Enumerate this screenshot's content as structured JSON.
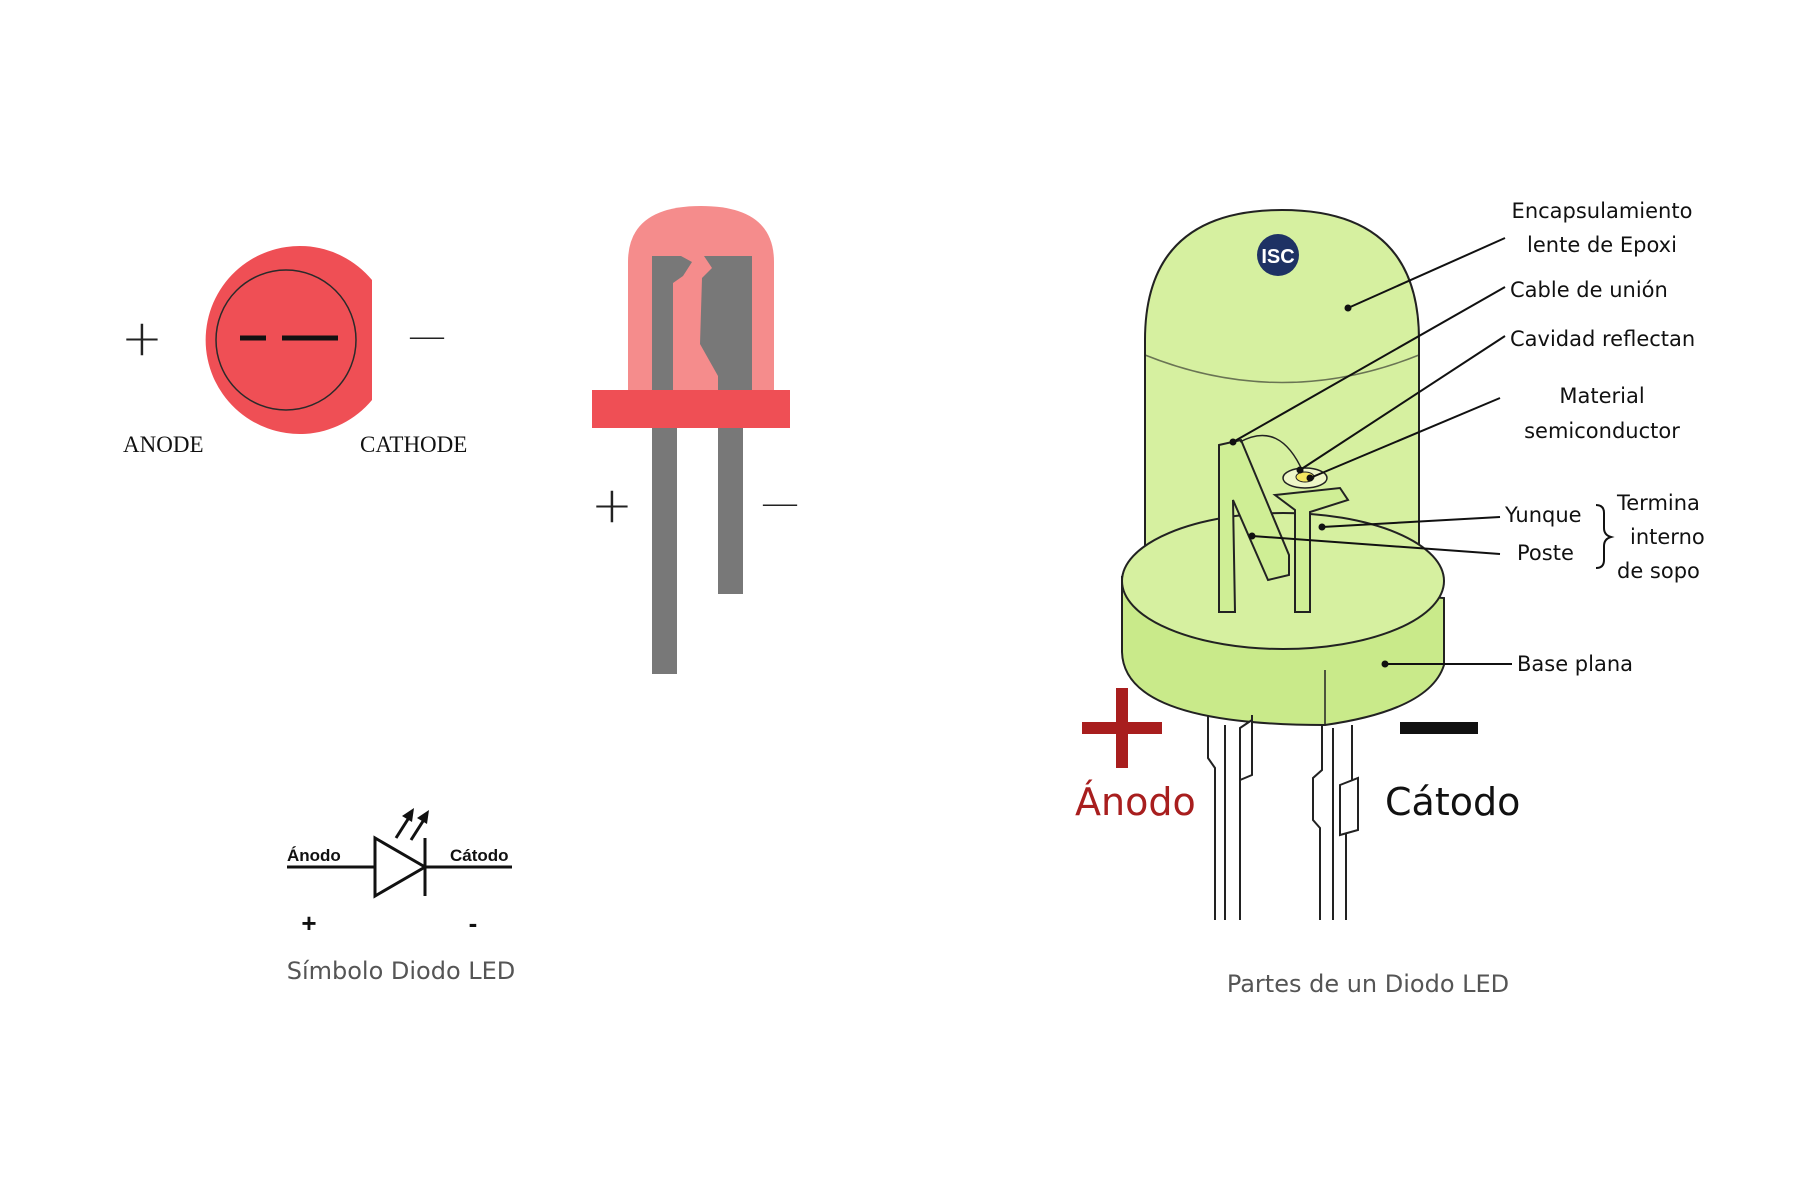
{
  "colors": {
    "led_red": "#ef4f55",
    "led_red_light": "#f58c8c",
    "lead_gray": "#787878",
    "led_green": "#d6f0a0",
    "anode_red": "#a81e1e",
    "logo_blue": "#1e3264",
    "ink": "#111111"
  },
  "top_view": {
    "plus": "+",
    "minus": "—",
    "anode_label": "ANODE",
    "cathode_label": "CATHODE"
  },
  "side_view": {
    "plus": "+",
    "minus": "—"
  },
  "symbol": {
    "anode_label": "Ánodo",
    "cathode_label": "Cátodo",
    "plus": "+",
    "minus": "-",
    "caption": "Símbolo Diodo LED"
  },
  "parts": {
    "logo": "ISC",
    "labels": {
      "encapsulation_line1": "Encapsulamiento",
      "encapsulation_line2": "lente de Epoxi",
      "bond_wire": "Cable de unión",
      "reflective_cavity": "Cavidad reflectan",
      "semiconductor_line1": "Material",
      "semiconductor_line2": "semiconductor",
      "anvil": "Yunque",
      "post": "Poste",
      "terminal_line1": "Termina",
      "terminal_line2": "interno",
      "terminal_line3": "de sopo",
      "flat_base": "Base plana"
    },
    "anode_label": "Ánodo",
    "cathode_label": "Cátodo",
    "caption": "Partes de un Diodo LED"
  }
}
